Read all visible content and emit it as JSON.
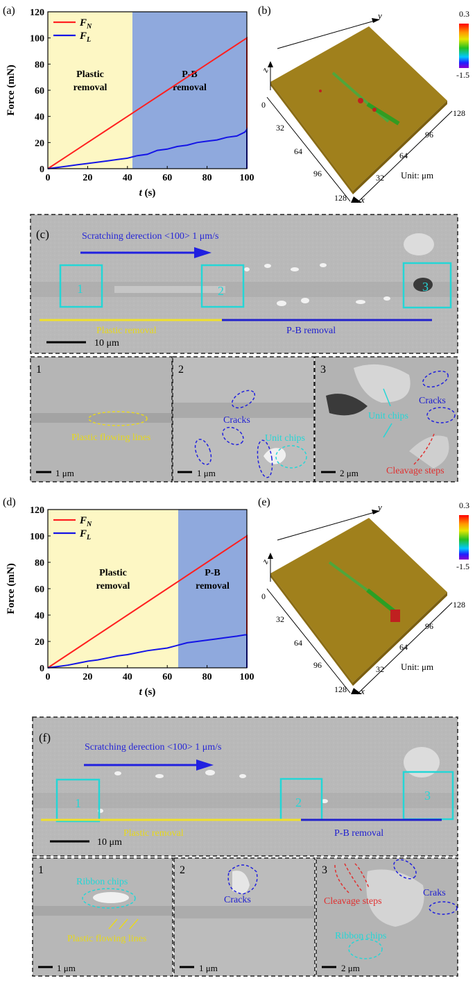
{
  "figure": {
    "panels": {
      "a": "(a)",
      "b": "(b)",
      "c": "(c)",
      "d": "(d)",
      "e": "(e)",
      "f": "(f)"
    }
  },
  "chart_data": [
    {
      "id": "a",
      "type": "line",
      "xlabel_italic": "t",
      "xlabel_unit": " (s)",
      "ylabel": "Force (mN)",
      "xlim": [
        0,
        100
      ],
      "ylim": [
        0,
        120
      ],
      "xticks": [
        0,
        20,
        40,
        60,
        80,
        100
      ],
      "yticks": [
        0,
        20,
        40,
        60,
        80,
        100,
        120
      ],
      "regions": [
        {
          "label1": "Plastic",
          "label2": "removal",
          "x0": 0,
          "x1": 42.5,
          "color": "#fdf7c4"
        },
        {
          "label1": "P-B",
          "label2": "removal",
          "x0": 42.5,
          "x1": 100,
          "color": "#8fa9dd"
        }
      ],
      "legend": [
        {
          "name": "F",
          "sub": "N",
          "color": "#ff2020"
        },
        {
          "name": "F",
          "sub": "L",
          "color": "#1414e6"
        }
      ],
      "series": [
        {
          "name": "F_N",
          "color": "#ff2020",
          "x": [
            0,
            10,
            20,
            30,
            40,
            50,
            60,
            70,
            80,
            90,
            99,
            100,
            100
          ],
          "y": [
            0,
            10,
            20,
            30,
            40,
            50,
            60,
            70,
            80,
            90,
            99,
            100,
            0
          ]
        },
        {
          "name": "F_L",
          "color": "#1414e6",
          "x": [
            0,
            5,
            10,
            15,
            20,
            25,
            30,
            35,
            40,
            45,
            50,
            55,
            60,
            65,
            70,
            75,
            80,
            85,
            90,
            95,
            99,
            100,
            100
          ],
          "y": [
            0,
            1,
            2,
            3,
            4,
            5,
            6,
            7,
            8,
            10,
            11,
            14,
            15,
            17,
            18,
            20,
            21,
            22,
            24,
            25,
            28,
            30,
            0
          ]
        }
      ]
    },
    {
      "id": "d",
      "type": "line",
      "xlabel_italic": "t",
      "xlabel_unit": " (s)",
      "ylabel": "Force (mN)",
      "xlim": [
        0,
        100
      ],
      "ylim": [
        0,
        120
      ],
      "xticks": [
        0,
        20,
        40,
        60,
        80,
        100
      ],
      "yticks": [
        0,
        20,
        40,
        60,
        80,
        100,
        120
      ],
      "regions": [
        {
          "label1": "Plastic",
          "label2": "removal",
          "x0": 0,
          "x1": 65.5,
          "color": "#fdf7c4"
        },
        {
          "label1": "P-B",
          "label2": "removal",
          "x0": 65.5,
          "x1": 100,
          "color": "#8fa9dd"
        }
      ],
      "legend": [
        {
          "name": "F",
          "sub": "N",
          "color": "#ff2020"
        },
        {
          "name": "F",
          "sub": "L",
          "color": "#1414e6"
        }
      ],
      "series": [
        {
          "name": "F_N",
          "color": "#ff2020",
          "x": [
            0,
            10,
            20,
            30,
            40,
            50,
            60,
            70,
            80,
            90,
            99,
            100,
            100
          ],
          "y": [
            0,
            10,
            20,
            30,
            40,
            50,
            60,
            70,
            80,
            90,
            99,
            100,
            0
          ]
        },
        {
          "name": "F_L",
          "color": "#1414e6",
          "x": [
            0,
            5,
            10,
            15,
            20,
            25,
            30,
            35,
            40,
            45,
            50,
            55,
            60,
            65,
            70,
            75,
            80,
            85,
            90,
            95,
            99,
            100,
            100
          ],
          "y": [
            0,
            1,
            2,
            3.5,
            5,
            6,
            7.5,
            9,
            10,
            11.5,
            13,
            14,
            15,
            17,
            19,
            20,
            21,
            22,
            23,
            24,
            25,
            25,
            0
          ]
        }
      ]
    }
  ],
  "maps": [
    {
      "id": "b",
      "axis_x": "x",
      "axis_y": "y",
      "axis_z": "z",
      "ticks_left": [
        "0",
        "32",
        "64",
        "96",
        "128"
      ],
      "ticks_right": [
        "128",
        "96",
        "64",
        "32"
      ],
      "unit": "Unit: μm",
      "colorbar_max": "0.3",
      "colorbar_min": "-1.5"
    },
    {
      "id": "e",
      "axis_x": "x",
      "axis_y": "y",
      "axis_z": "z",
      "ticks_left": [
        "0",
        "32",
        "64",
        "96",
        "128"
      ],
      "ticks_right": [
        "128",
        "96",
        "64",
        "32"
      ],
      "unit": "Unit: μm",
      "colorbar_max": "0.3",
      "colorbar_min": "-1.5"
    }
  ],
  "sem": [
    {
      "id": "c",
      "direction": "Scratching derection <100>  1 μm/s",
      "boxes": [
        "1",
        "2",
        "3"
      ],
      "plastic_label": "Plastic removal",
      "pb_label": "P-B removal",
      "scale": "10 μm",
      "insets": [
        {
          "num": "1",
          "scale": "1 μm",
          "labels": [
            "Plastic flowing lines"
          ]
        },
        {
          "num": "2",
          "scale": "1 μm",
          "labels": [
            "Cracks",
            "Unit chips"
          ]
        },
        {
          "num": "3",
          "scale": "2 μm",
          "labels": [
            "Unit chips",
            "Cracks",
            "Cleavage steps"
          ]
        }
      ]
    },
    {
      "id": "f",
      "direction": "Scratching derection <100>  1 μm/s",
      "boxes": [
        "1",
        "2",
        "3"
      ],
      "plastic_label": "Plastic removal",
      "pb_label": "P-B removal",
      "scale": "10 μm",
      "insets": [
        {
          "num": "1",
          "scale": "1 μm",
          "labels": [
            "Ribbon chips",
            "Plastic flowing lines"
          ]
        },
        {
          "num": "2",
          "scale": "1 μm",
          "labels": [
            "Cracks"
          ]
        },
        {
          "num": "3",
          "scale": "2 μm",
          "labels": [
            "Cleavage steps",
            "Craks",
            "Ribbon chips"
          ]
        }
      ]
    }
  ]
}
